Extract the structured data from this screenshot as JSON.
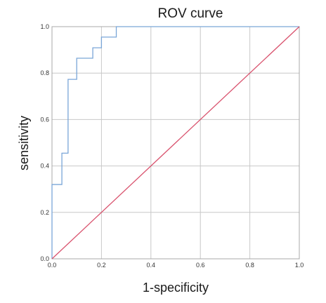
{
  "chart_data": {
    "type": "line",
    "title": "ROV curve",
    "xlabel": "1-specificity",
    "ylabel": "sensitivity",
    "xlim": [
      0,
      1
    ],
    "ylim": [
      0,
      1
    ],
    "x_ticks": [
      "0.0",
      "0.2",
      "0.4",
      "0.6",
      "0.8",
      "1.0"
    ],
    "y_ticks": [
      "0.0",
      "0.2",
      "0.4",
      "0.6",
      "0.8",
      "1.0"
    ],
    "grid": true,
    "series": [
      {
        "color": "#7aa6d8",
        "x": [
          0.0,
          0.0,
          0.04,
          0.04,
          0.065,
          0.065,
          0.1,
          0.1,
          0.165,
          0.165,
          0.2,
          0.2,
          0.26,
          0.26,
          1.0
        ],
        "y": [
          0.0,
          0.32,
          0.32,
          0.455,
          0.455,
          0.773,
          0.773,
          0.864,
          0.864,
          0.909,
          0.909,
          0.955,
          0.955,
          1.0,
          1.0
        ]
      },
      {
        "color": "#d9536e",
        "x": [
          0.0,
          1.0
        ],
        "y": [
          0.0,
          1.0
        ]
      }
    ]
  }
}
